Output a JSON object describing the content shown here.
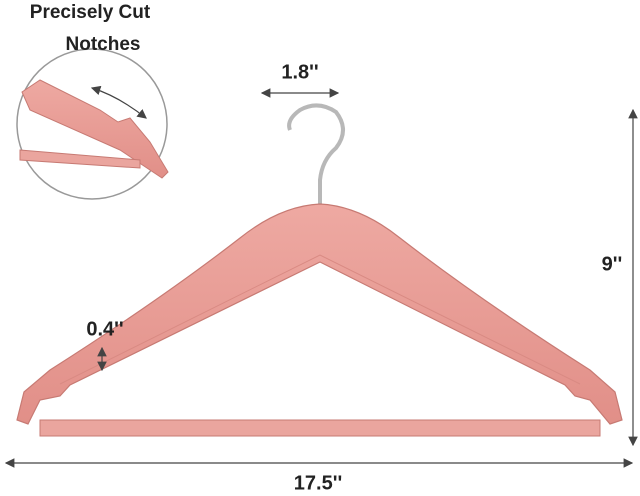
{
  "callout": {
    "title_line1": "Precisely Cut",
    "title_line2": "Notches"
  },
  "dimensions": {
    "hook_width": "1.8''",
    "height": "9''",
    "thickness": "0.4''",
    "length": "17.5''"
  }
}
